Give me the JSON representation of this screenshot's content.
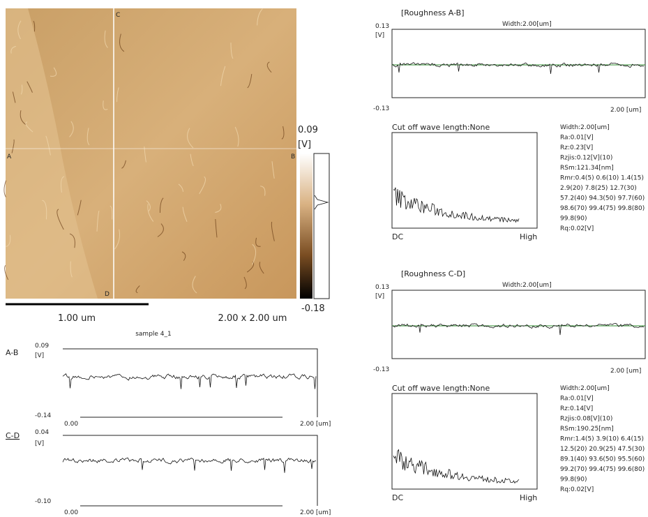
{
  "image": {
    "label_a": "A",
    "label_b": "B",
    "label_c": "C",
    "label_d": "D",
    "scale_bar": "1.00 um",
    "size": "2.00 x 2.00 um"
  },
  "colorbar": {
    "max": "0.09",
    "unit": "[V]",
    "min": "-0.18"
  },
  "profiles": {
    "title": "sample 4_1",
    "ab": {
      "name": "A-B",
      "ymax": "0.09",
      "unit": "[V]",
      "ymin": "-0.14",
      "xmin": "0.00",
      "xmax": "2.00 [um]"
    },
    "cd": {
      "name": "C-D",
      "ymax": "0.04",
      "unit": "[V]",
      "ymin": "-0.10",
      "xmin": "0.00",
      "xmax": "2.00 [um]"
    }
  },
  "roughness": [
    {
      "title": "[Roughness A-B]",
      "width": "Width:2.00[um]",
      "ymax": "0.13",
      "unit": "[V]",
      "ymin": "-0.13",
      "xmax": "2.00 [um]",
      "cutoff": "Cut off wave length:None",
      "dc": "DC",
      "high": "High",
      "stats": [
        "Width:2.00[um]",
        "Ra:0.01[V]",
        "Rz:0.23[V]",
        "Rzjis:0.12[V](10)",
        "RSm:121.34[nm]",
        "Rmr:0.4(5) 0.6(10) 1.4(15)",
        "2.9(20) 7.8(25) 12.7(30)",
        "57.2(40) 94.3(50) 97.7(60)",
        "98.6(70) 99.4(75) 99.8(80)",
        "99.8(90)",
        "Rq:0.02[V]"
      ]
    },
    {
      "title": "[Roughness C-D]",
      "width": "Width:2.00[um]",
      "ymax": "0.13",
      "unit": "[V]",
      "ymin": "-0.13",
      "xmax": "2.00 [um]",
      "cutoff": "Cut off wave length:None",
      "dc": "DC",
      "high": "High",
      "stats": [
        "Width:2.00[um]",
        "Ra:0.01[V]",
        "Rz:0.14[V]",
        "Rzjis:0.08[V](10)",
        "RSm:190.25[nm]",
        "Rmr:1.4(5) 3.9(10) 6.4(15)",
        "12.5(20) 20.9(25) 47.5(30)",
        "89.1(40) 93.6(50) 95.5(60)",
        "99.2(70) 99.4(75) 99.6(80)",
        "99.8(90)",
        "Rq:0.02[V]"
      ]
    }
  ]
}
